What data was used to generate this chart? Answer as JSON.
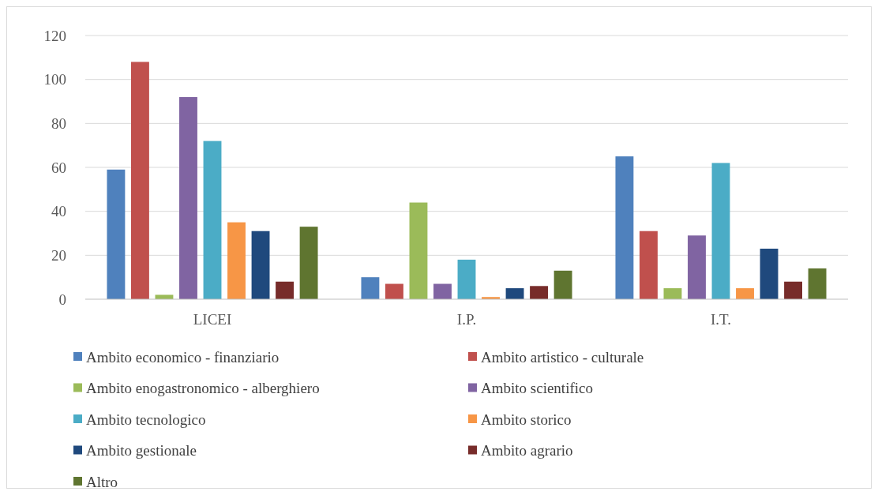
{
  "chart_data": {
    "type": "bar",
    "categories": [
      "LICEI",
      "I.P.",
      "I.T."
    ],
    "series": [
      {
        "name": "Ambito economico - finanziario",
        "color": "#4f81bd",
        "values": [
          59,
          10,
          65
        ]
      },
      {
        "name": "Ambito artistico - culturale",
        "color": "#c0504d",
        "values": [
          108,
          7,
          31
        ]
      },
      {
        "name": "Ambito enogastronomico - alberghiero",
        "color": "#9bbb59",
        "values": [
          2,
          44,
          5
        ]
      },
      {
        "name": "Ambito scientifico",
        "color": "#8064a2",
        "values": [
          92,
          7,
          29
        ]
      },
      {
        "name": "Ambito tecnologico",
        "color": "#4bacc6",
        "values": [
          72,
          18,
          62
        ]
      },
      {
        "name": "Ambito storico",
        "color": "#f79646",
        "values": [
          35,
          1,
          5
        ]
      },
      {
        "name": "Ambito gestionale",
        "color": "#1f497d",
        "values": [
          31,
          5,
          23
        ]
      },
      {
        "name": "Ambito agrario",
        "color": "#772c2a",
        "values": [
          8,
          6,
          8
        ]
      },
      {
        "name": "Altro",
        "color": "#5f7530",
        "values": [
          33,
          13,
          14
        ]
      }
    ],
    "ylim": [
      0,
      120
    ],
    "yticks": [
      0,
      20,
      40,
      60,
      80,
      100,
      120
    ],
    "grid": "y",
    "legend": "bottom"
  }
}
